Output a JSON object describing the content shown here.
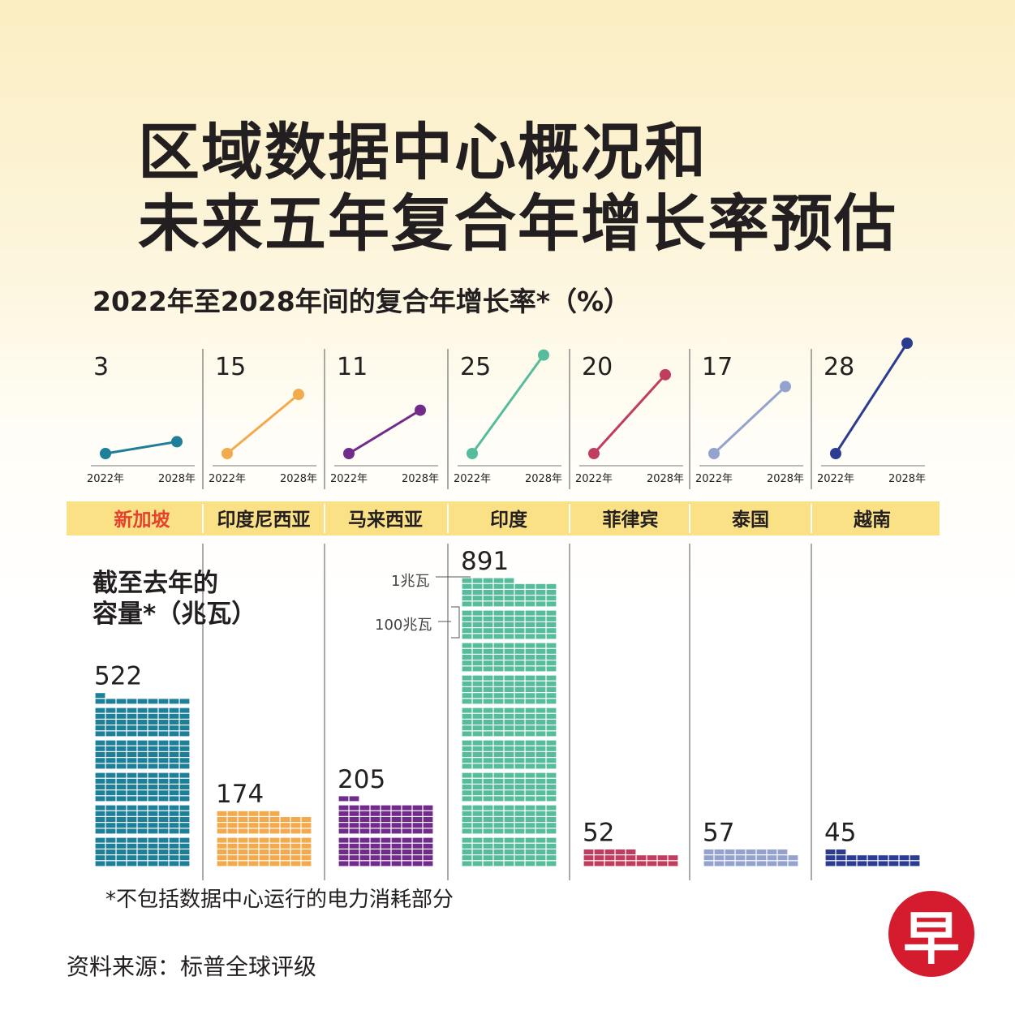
{
  "title_line1": "区域数据中心概况和",
  "title_line2": "未来五年复合年增长率预估",
  "subtitle": "2022年至2028年间的复合年增长率*（%）",
  "capacity_label_line1": "截至去年的",
  "capacity_label_line2": "容量*（兆瓦）",
  "legend_1mw": "1兆瓦",
  "legend_100mw": "100兆瓦",
  "footnote": "*不包括数据中心运行的电力消耗部分",
  "source": "资料来源：标普全球评级",
  "logo_text": "早",
  "colors": {
    "band": "#fbe185",
    "highlight_text": "#e5412e",
    "divider": "#555555"
  },
  "chart_data": {
    "type": "line",
    "title": "2022年至2028年间的复合年增长率*（%）",
    "x_labels": [
      "2022年",
      "2028年"
    ],
    "countries": [
      {
        "name": "新加坡",
        "cagr": 3,
        "capacity": 522,
        "color": "#1d7f98",
        "highlight": true
      },
      {
        "name": "印度尼西亚",
        "cagr": 15,
        "capacity": 174,
        "color": "#f3aa4d",
        "highlight": false
      },
      {
        "name": "马来西亚",
        "cagr": 11,
        "capacity": 205,
        "color": "#712b8b",
        "highlight": false
      },
      {
        "name": "印度",
        "cagr": 25,
        "capacity": 891,
        "color": "#57bc9c",
        "highlight": false
      },
      {
        "name": "菲律宾",
        "cagr": 20,
        "capacity": 52,
        "color": "#c13d5e",
        "highlight": false
      },
      {
        "name": "泰国",
        "cagr": 17,
        "capacity": 57,
        "color": "#94a2cf",
        "highlight": false
      },
      {
        "name": "越南",
        "cagr": 28,
        "capacity": 45,
        "color": "#2c3c90",
        "highlight": false
      }
    ],
    "capacity_unit": "兆瓦",
    "secondary_type": "bar"
  }
}
